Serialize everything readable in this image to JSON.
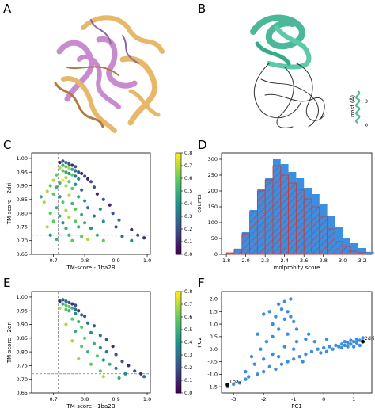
{
  "panels": {
    "a": {
      "letter": "A"
    },
    "b": {
      "letter": "B",
      "rmsf_label": "rmsf (Å)",
      "rmsf_max": "3",
      "rmsf_min": "0"
    },
    "c": {
      "letter": "C"
    },
    "d": {
      "letter": "D"
    },
    "e": {
      "letter": "E"
    },
    "f": {
      "letter": "F"
    }
  },
  "chart_data": [
    {
      "id": "C",
      "type": "scatter",
      "xlabel": "TM-score - 1ba2B",
      "ylabel": "TM-score - 2dri",
      "xlim": [
        0.63,
        1.01
      ],
      "ylim": [
        0.65,
        1.02
      ],
      "xticks": [
        0.7,
        0.8,
        0.9,
        1.0
      ],
      "yticks": [
        0.65,
        0.7,
        0.75,
        0.8,
        0.85,
        0.9,
        0.95,
        1.0
      ],
      "colorbar": {
        "ticks": [
          0.0,
          0.1,
          0.2,
          0.3,
          0.4,
          0.5,
          0.6,
          0.7,
          0.8
        ],
        "colormap": "viridis"
      },
      "reference_lines": {
        "x": 0.715,
        "y": 0.72
      },
      "points": [
        [
          0.72,
          0.985,
          0.1
        ],
        [
          0.73,
          0.99,
          0.2
        ],
        [
          0.74,
          0.985,
          0.3
        ],
        [
          0.75,
          0.98,
          0.2
        ],
        [
          0.76,
          0.975,
          0.1
        ],
        [
          0.77,
          0.97,
          0.2
        ],
        [
          0.73,
          0.975,
          0.5
        ],
        [
          0.74,
          0.97,
          0.6
        ],
        [
          0.75,
          0.965,
          0.7
        ],
        [
          0.76,
          0.96,
          0.5
        ],
        [
          0.77,
          0.955,
          0.3
        ],
        [
          0.78,
          0.95,
          0.2
        ],
        [
          0.72,
          0.965,
          0.7
        ],
        [
          0.73,
          0.955,
          0.6
        ],
        [
          0.74,
          0.95,
          0.5
        ],
        [
          0.75,
          0.945,
          0.4
        ],
        [
          0.76,
          0.94,
          0.6
        ],
        [
          0.77,
          0.935,
          0.3
        ],
        [
          0.79,
          0.945,
          0.1
        ],
        [
          0.8,
          0.935,
          0.2
        ],
        [
          0.81,
          0.925,
          0.1
        ],
        [
          0.82,
          0.915,
          0.2
        ],
        [
          0.78,
          0.925,
          0.4
        ],
        [
          0.74,
          0.93,
          0.7
        ],
        [
          0.71,
          0.94,
          0.6
        ],
        [
          0.7,
          0.92,
          0.7
        ],
        [
          0.72,
          0.91,
          0.5
        ],
        [
          0.73,
          0.92,
          0.8
        ],
        [
          0.75,
          0.915,
          0.6
        ],
        [
          0.77,
          0.905,
          0.4
        ],
        [
          0.69,
          0.9,
          0.6
        ],
        [
          0.71,
          0.895,
          0.5
        ],
        [
          0.74,
          0.9,
          0.7
        ],
        [
          0.76,
          0.89,
          0.6
        ],
        [
          0.79,
          0.885,
          0.3
        ],
        [
          0.83,
          0.895,
          0.2
        ],
        [
          0.68,
          0.88,
          0.7
        ],
        [
          0.7,
          0.87,
          0.6
        ],
        [
          0.72,
          0.86,
          0.4
        ],
        [
          0.75,
          0.865,
          0.7
        ],
        [
          0.78,
          0.86,
          0.5
        ],
        [
          0.84,
          0.87,
          0.1
        ],
        [
          0.66,
          0.86,
          0.5
        ],
        [
          0.67,
          0.84,
          0.7
        ],
        [
          0.73,
          0.84,
          0.6
        ],
        [
          0.76,
          0.835,
          0.5
        ],
        [
          0.8,
          0.845,
          0.4
        ],
        [
          0.86,
          0.85,
          0.2
        ],
        [
          0.71,
          0.82,
          0.5
        ],
        [
          0.74,
          0.81,
          0.7
        ],
        [
          0.77,
          0.815,
          0.6
        ],
        [
          0.81,
          0.82,
          0.3
        ],
        [
          0.85,
          0.815,
          0.4
        ],
        [
          0.88,
          0.83,
          0.1
        ],
        [
          0.69,
          0.8,
          0.6
        ],
        [
          0.72,
          0.79,
          0.5
        ],
        [
          0.75,
          0.785,
          0.7
        ],
        [
          0.79,
          0.795,
          0.5
        ],
        [
          0.83,
          0.79,
          0.3
        ],
        [
          0.89,
          0.8,
          0.2
        ],
        [
          0.7,
          0.77,
          0.6
        ],
        [
          0.73,
          0.765,
          0.4
        ],
        [
          0.77,
          0.77,
          0.6
        ],
        [
          0.8,
          0.765,
          0.5
        ],
        [
          0.86,
          0.77,
          0.4
        ],
        [
          0.91,
          0.775,
          0.3
        ],
        [
          0.68,
          0.75,
          0.7
        ],
        [
          0.74,
          0.745,
          0.5
        ],
        [
          0.78,
          0.75,
          0.5
        ],
        [
          0.82,
          0.745,
          0.4
        ],
        [
          0.9,
          0.75,
          0.2
        ],
        [
          0.95,
          0.74,
          0.1
        ],
        [
          0.69,
          0.72,
          0.4
        ],
        [
          0.75,
          0.72,
          0.5
        ],
        [
          0.79,
          0.715,
          0.6
        ],
        [
          0.84,
          0.72,
          0.5
        ],
        [
          0.92,
          0.715,
          0.3
        ],
        [
          0.97,
          0.72,
          0.2
        ],
        [
          0.71,
          0.705,
          0.5
        ],
        [
          0.76,
          0.7,
          0.6
        ],
        [
          0.81,
          0.705,
          0.7
        ],
        [
          0.86,
          0.7,
          0.6
        ],
        [
          0.99,
          0.71,
          0.1
        ],
        [
          0.95,
          0.7,
          0.4
        ]
      ]
    },
    {
      "id": "D",
      "type": "bar",
      "xlabel": "molprobity score",
      "ylabel": "counts",
      "xlim": [
        1.75,
        3.3
      ],
      "ylim": [
        0,
        320
      ],
      "xticks": [
        1.8,
        2.0,
        2.2,
        2.4,
        2.6,
        2.8,
        3.0,
        3.2
      ],
      "yticks": [
        0,
        50,
        100,
        150,
        200,
        250,
        300
      ],
      "bin_start": 1.8,
      "bin_width": 0.08,
      "series": [
        {
          "style": "blue",
          "values": [
            5,
            18,
            70,
            140,
            205,
            240,
            300,
            285,
            260,
            240,
            210,
            190,
            160,
            120,
            85,
            50,
            35,
            20,
            8,
            3
          ]
        },
        {
          "style": "hatched",
          "values": [
            5,
            15,
            65,
            135,
            200,
            235,
            280,
            250,
            225,
            205,
            175,
            150,
            120,
            80,
            40,
            25,
            10,
            5,
            0,
            0
          ]
        }
      ]
    },
    {
      "id": "E",
      "type": "scatter",
      "xlabel": "TM-score - 1ba2B",
      "ylabel": "TM-score - 2dri",
      "xlim": [
        0.63,
        1.01
      ],
      "ylim": [
        0.65,
        1.02
      ],
      "xticks": [
        0.7,
        0.8,
        0.9,
        1.0
      ],
      "yticks": [
        0.65,
        0.7,
        0.75,
        0.8,
        0.85,
        0.9,
        0.95,
        1.0
      ],
      "colorbar": {
        "ticks": [
          0.0,
          0.1,
          0.2,
          0.3,
          0.4,
          0.5,
          0.6,
          0.7,
          0.8
        ],
        "colormap": "viridis"
      },
      "reference_lines": {
        "x": 0.715,
        "y": 0.72
      },
      "points": [
        [
          0.72,
          0.985,
          0.1
        ],
        [
          0.73,
          0.99,
          0.2
        ],
        [
          0.74,
          0.985,
          0.3
        ],
        [
          0.75,
          0.98,
          0.2
        ],
        [
          0.76,
          0.975,
          0.1
        ],
        [
          0.77,
          0.97,
          0.2
        ],
        [
          0.73,
          0.975,
          0.5
        ],
        [
          0.74,
          0.97,
          0.6
        ],
        [
          0.75,
          0.965,
          0.6
        ],
        [
          0.76,
          0.96,
          0.5
        ],
        [
          0.77,
          0.955,
          0.3
        ],
        [
          0.78,
          0.95,
          0.1
        ],
        [
          0.72,
          0.96,
          0.7
        ],
        [
          0.74,
          0.955,
          0.6
        ],
        [
          0.75,
          0.95,
          0.5
        ],
        [
          0.77,
          0.94,
          0.4
        ],
        [
          0.79,
          0.935,
          0.3
        ],
        [
          0.8,
          0.93,
          0.2
        ],
        [
          0.76,
          0.92,
          0.6
        ],
        [
          0.78,
          0.91,
          0.5
        ],
        [
          0.81,
          0.905,
          0.3
        ],
        [
          0.83,
          0.895,
          0.2
        ],
        [
          0.74,
          0.9,
          0.7
        ],
        [
          0.79,
          0.89,
          0.6
        ],
        [
          0.77,
          0.875,
          0.5
        ],
        [
          0.82,
          0.87,
          0.4
        ],
        [
          0.85,
          0.86,
          0.3
        ],
        [
          0.8,
          0.85,
          0.6
        ],
        [
          0.87,
          0.845,
          0.2
        ],
        [
          0.83,
          0.83,
          0.5
        ],
        [
          0.76,
          0.84,
          0.7
        ],
        [
          0.79,
          0.82,
          0.6
        ],
        [
          0.85,
          0.815,
          0.4
        ],
        [
          0.89,
          0.82,
          0.1
        ],
        [
          0.81,
          0.8,
          0.5
        ],
        [
          0.87,
          0.8,
          0.3
        ],
        [
          0.84,
          0.785,
          0.6
        ],
        [
          0.9,
          0.79,
          0.2
        ],
        [
          0.78,
          0.775,
          0.7
        ],
        [
          0.86,
          0.77,
          0.4
        ],
        [
          0.92,
          0.765,
          0.2
        ],
        [
          0.88,
          0.755,
          0.5
        ],
        [
          0.82,
          0.755,
          0.6
        ],
        [
          0.94,
          0.75,
          0.1
        ],
        [
          0.9,
          0.74,
          0.3
        ],
        [
          0.85,
          0.73,
          0.6
        ],
        [
          0.96,
          0.73,
          0.2
        ],
        [
          0.98,
          0.72,
          0.1
        ],
        [
          0.93,
          0.72,
          0.4
        ],
        [
          0.86,
          0.71,
          0.7
        ],
        [
          0.91,
          0.705,
          0.5
        ],
        [
          0.99,
          0.71,
          0.3
        ]
      ]
    },
    {
      "id": "F",
      "type": "scatter",
      "xlabel": "PC1",
      "ylabel": "PC2",
      "xlim": [
        -3.4,
        1.6
      ],
      "ylim": [
        -1.75,
        2.3
      ],
      "xticks": [
        -3,
        -2,
        -1,
        0,
        1
      ],
      "yticks": [
        -1.5,
        -1.0,
        -0.5,
        0.0,
        0.5,
        1.0,
        1.5,
        2.0
      ],
      "annotations": [
        {
          "text": "1ba2",
          "x": -3.2,
          "y": -1.42
        },
        {
          "text": "2dri",
          "x": 1.3,
          "y": 0.3
        }
      ],
      "points": [
        [
          -3.2,
          -1.5
        ],
        [
          -3.0,
          -1.4
        ],
        [
          -2.8,
          -1.35
        ],
        [
          -2.6,
          -1.2
        ],
        [
          -2.5,
          -1.1
        ],
        [
          -2.2,
          -1.0
        ],
        [
          -2.0,
          -0.9
        ],
        [
          -1.8,
          -0.7
        ],
        [
          -2.3,
          -0.6
        ],
        [
          -1.6,
          -0.8
        ],
        [
          -1.4,
          -0.6
        ],
        [
          -1.2,
          -0.5
        ],
        [
          -1.0,
          -0.4
        ],
        [
          -0.8,
          -0.3
        ],
        [
          -0.6,
          -0.2
        ],
        [
          -0.4,
          -0.1
        ],
        [
          -0.2,
          0.0
        ],
        [
          0.0,
          0.05
        ],
        [
          0.2,
          0.1
        ],
        [
          0.4,
          0.15
        ],
        [
          0.6,
          0.2
        ],
        [
          0.8,
          0.25
        ],
        [
          1.0,
          0.3
        ],
        [
          1.2,
          0.35
        ],
        [
          0.5,
          0.1
        ],
        [
          0.7,
          0.15
        ],
        [
          0.9,
          0.2
        ],
        [
          1.1,
          0.25
        ],
        [
          1.3,
          0.3
        ],
        [
          0.3,
          0.0
        ],
        [
          0.6,
          0.05
        ],
        [
          0.8,
          0.1
        ],
        [
          1.0,
          0.1
        ],
        [
          1.2,
          0.15
        ],
        [
          0.9,
          0.35
        ],
        [
          1.1,
          0.4
        ],
        [
          1.3,
          0.45
        ],
        [
          0.7,
          0.3
        ],
        [
          -0.1,
          -0.15
        ],
        [
          0.1,
          -0.1
        ],
        [
          -1.5,
          1.8
        ],
        [
          -1.3,
          1.9
        ],
        [
          -1.1,
          2.0
        ],
        [
          -1.4,
          1.6
        ],
        [
          -1.2,
          1.5
        ],
        [
          -1.6,
          1.3
        ],
        [
          -1.3,
          1.2
        ],
        [
          -1.0,
          1.1
        ],
        [
          -1.8,
          1.5
        ],
        [
          -2.0,
          1.4
        ],
        [
          -1.7,
          1.0
        ],
        [
          -1.1,
          1.3
        ],
        [
          -1.5,
          0.8
        ],
        [
          -1.2,
          0.6
        ],
        [
          -0.9,
          0.8
        ],
        [
          -1.9,
          0.3
        ],
        [
          -2.1,
          0.0
        ],
        [
          -1.7,
          -0.2
        ],
        [
          -2.4,
          -0.3
        ],
        [
          -1.3,
          0.1
        ],
        [
          -0.9,
          0.3
        ],
        [
          -0.6,
          0.4
        ],
        [
          -0.5,
          0.6
        ],
        [
          -2.6,
          -0.9
        ],
        [
          -2.0,
          -0.4
        ],
        [
          -1.0,
          0.0
        ],
        [
          -0.7,
          -0.5
        ],
        [
          -1.5,
          -0.3
        ],
        [
          -0.3,
          0.3
        ],
        [
          0.1,
          0.4
        ],
        [
          -1.7,
          0.5
        ],
        [
          -2.2,
          0.6
        ]
      ]
    }
  ]
}
